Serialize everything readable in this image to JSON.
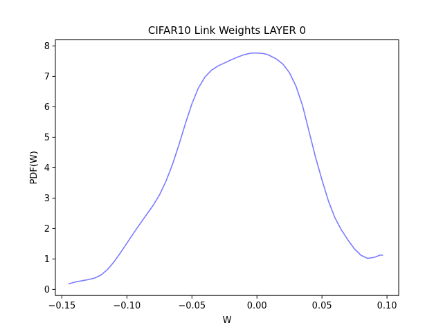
{
  "chart_data": {
    "type": "line",
    "title": "CIFAR10 Link Weights LAYER 0",
    "xlabel": "W",
    "ylabel": "PDF(W)",
    "xlim": [
      -0.155,
      0.109
    ],
    "ylim": [
      -0.2,
      8.2
    ],
    "xticks": [
      -0.15,
      -0.1,
      -0.05,
      0.0,
      0.05,
      0.1
    ],
    "xtick_labels": [
      "−0.15",
      "−0.10",
      "−0.05",
      "0.00",
      "0.05",
      "0.10"
    ],
    "yticks": [
      0,
      1,
      2,
      3,
      4,
      5,
      6,
      7,
      8
    ],
    "ytick_labels": [
      "0",
      "1",
      "2",
      "3",
      "4",
      "5",
      "6",
      "7",
      "8"
    ],
    "grid": false,
    "series": [
      {
        "color": "#7b7bff",
        "x": [
          -0.145,
          -0.14,
          -0.135,
          -0.13,
          -0.125,
          -0.12,
          -0.115,
          -0.11,
          -0.105,
          -0.1,
          -0.095,
          -0.09,
          -0.085,
          -0.08,
          -0.075,
          -0.07,
          -0.065,
          -0.06,
          -0.055,
          -0.05,
          -0.045,
          -0.04,
          -0.035,
          -0.03,
          -0.025,
          -0.02,
          -0.015,
          -0.01,
          -0.005,
          0.0,
          0.005,
          0.008,
          0.01,
          0.015,
          0.02,
          0.025,
          0.03,
          0.035,
          0.04,
          0.045,
          0.05,
          0.055,
          0.06,
          0.065,
          0.07,
          0.075,
          0.08,
          0.085,
          0.09,
          0.095,
          0.097
        ],
        "y": [
          0.18,
          0.24,
          0.28,
          0.32,
          0.37,
          0.47,
          0.65,
          0.9,
          1.2,
          1.52,
          1.84,
          2.15,
          2.45,
          2.75,
          3.1,
          3.55,
          4.1,
          4.75,
          5.45,
          6.1,
          6.62,
          6.98,
          7.2,
          7.34,
          7.44,
          7.54,
          7.63,
          7.71,
          7.76,
          7.77,
          7.75,
          7.72,
          7.68,
          7.57,
          7.4,
          7.12,
          6.68,
          6.05,
          5.2,
          4.35,
          3.6,
          2.9,
          2.35,
          1.95,
          1.62,
          1.33,
          1.12,
          1.02,
          1.05,
          1.13,
          1.12
        ]
      }
    ]
  }
}
